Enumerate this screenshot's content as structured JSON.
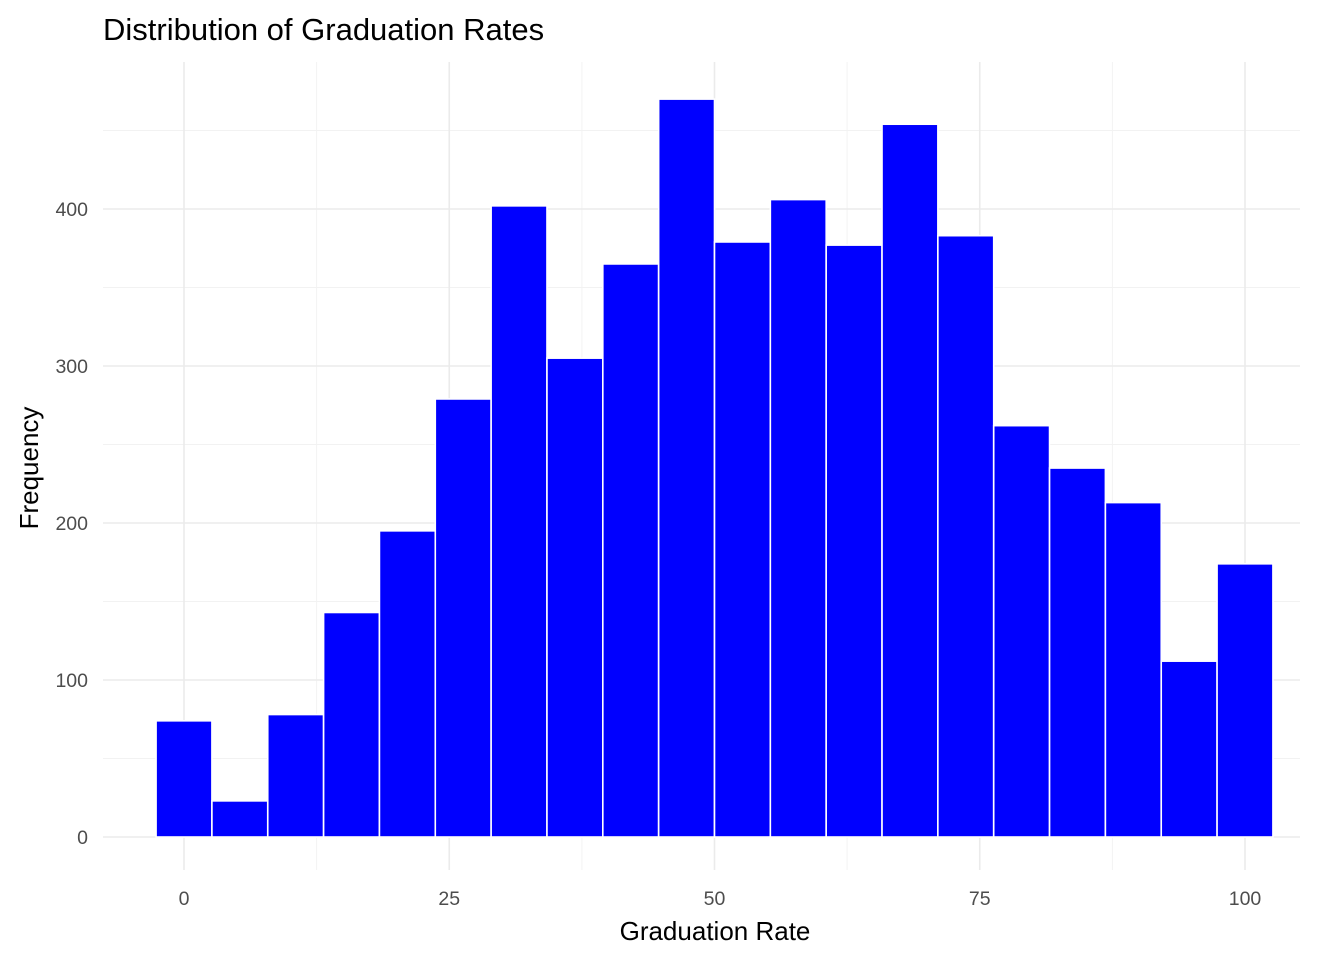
{
  "chart_data": {
    "type": "bar",
    "title": "Distribution of Graduation Rates",
    "xlabel": "Graduation Rate",
    "ylabel": "Frequency",
    "bar_color": "#0000ff",
    "bar_outline": "#ffffff",
    "grid": true,
    "xlim": [
      -5,
      105
    ],
    "ylim": [
      0,
      490
    ],
    "x_ticks": [
      0,
      25,
      50,
      75,
      100
    ],
    "y_ticks": [
      0,
      100,
      200,
      300,
      400
    ],
    "bin_width": 5.263,
    "bins": [
      {
        "x": 0.0,
        "count": 74
      },
      {
        "x": 5.263,
        "count": 23
      },
      {
        "x": 10.526,
        "count": 78
      },
      {
        "x": 15.789,
        "count": 143
      },
      {
        "x": 21.053,
        "count": 195
      },
      {
        "x": 26.316,
        "count": 279
      },
      {
        "x": 31.579,
        "count": 402
      },
      {
        "x": 36.842,
        "count": 305
      },
      {
        "x": 42.105,
        "count": 365
      },
      {
        "x": 47.368,
        "count": 470
      },
      {
        "x": 52.632,
        "count": 379
      },
      {
        "x": 57.895,
        "count": 406
      },
      {
        "x": 63.158,
        "count": 377
      },
      {
        "x": 68.421,
        "count": 454
      },
      {
        "x": 73.684,
        "count": 383
      },
      {
        "x": 78.947,
        "count": 262
      },
      {
        "x": 84.211,
        "count": 235
      },
      {
        "x": 89.474,
        "count": 213
      },
      {
        "x": 94.737,
        "count": 112
      },
      {
        "x": 100.0,
        "count": 174
      }
    ]
  }
}
